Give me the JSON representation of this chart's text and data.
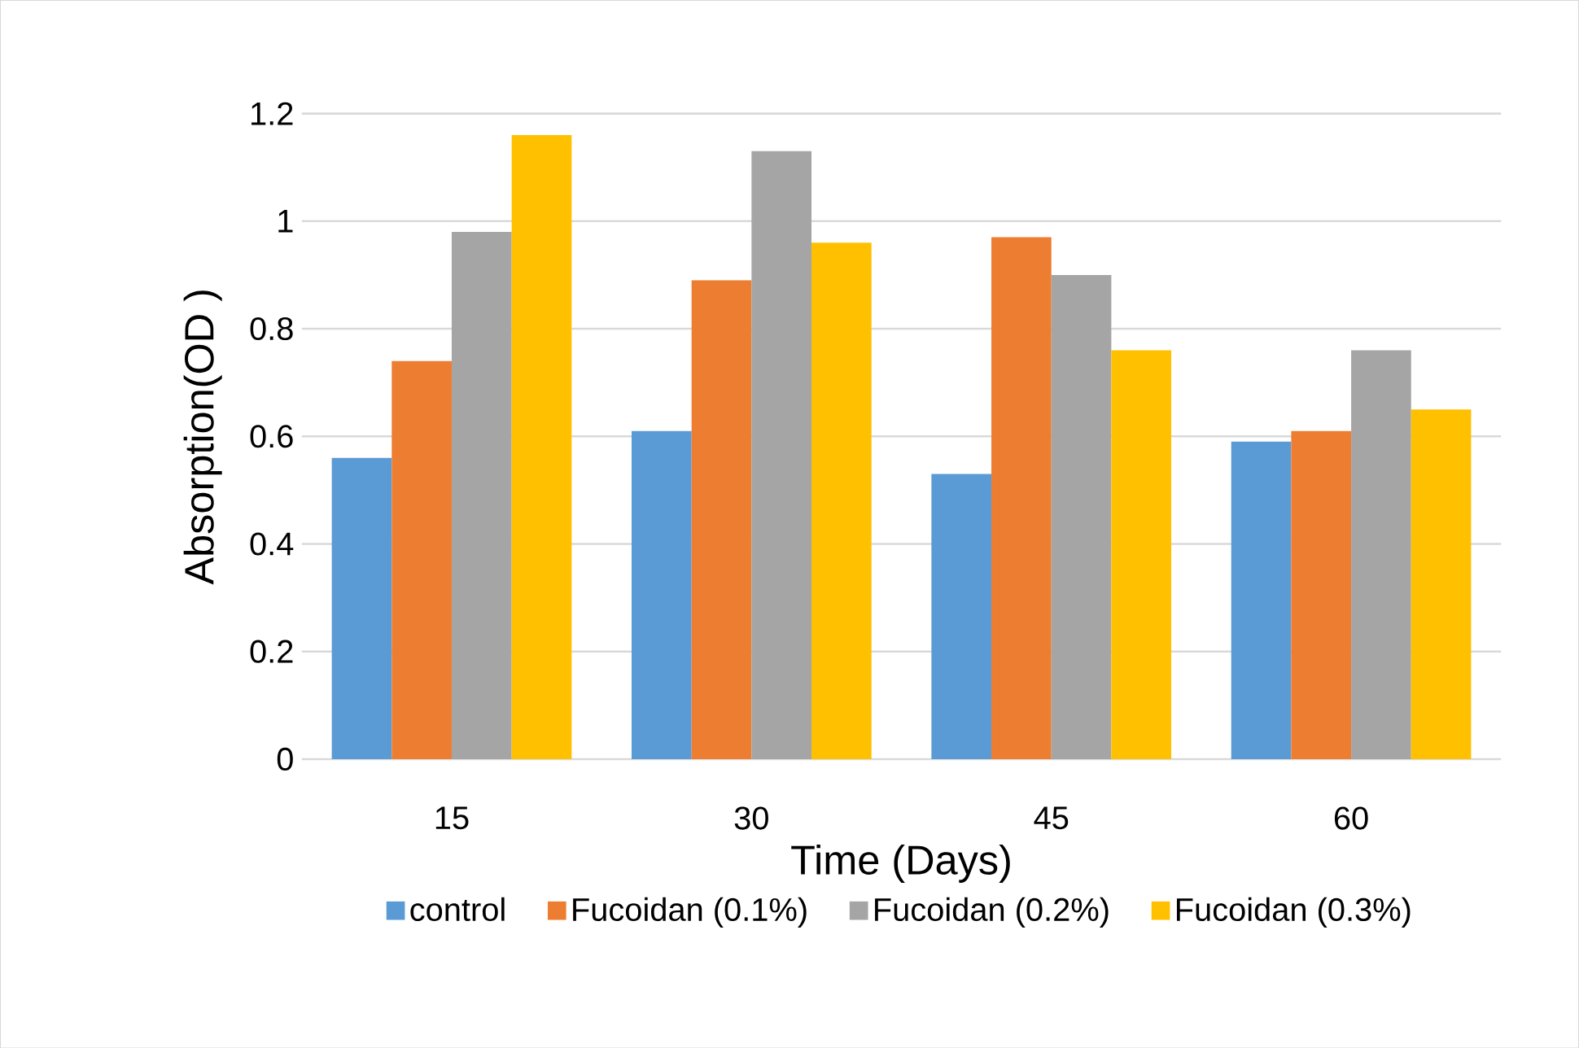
{
  "chart_data": {
    "type": "bar",
    "xlabel": "Time (Days)",
    "ylabel": "Absorption(OD )",
    "categories": [
      "15",
      "30",
      "45",
      "60"
    ],
    "series": [
      {
        "name": "control",
        "color": "#5b9bd5",
        "values": [
          0.56,
          0.61,
          0.53,
          0.59
        ]
      },
      {
        "name": "Fucoidan (0.1%)",
        "color": "#ed7d31",
        "values": [
          0.74,
          0.89,
          0.97,
          0.61
        ]
      },
      {
        "name": "Fucoidan (0.2%)",
        "color": "#a5a5a5",
        "values": [
          0.98,
          1.13,
          0.9,
          0.76
        ]
      },
      {
        "name": "Fucoidan (0.3%)",
        "color": "#ffc000",
        "values": [
          1.16,
          0.96,
          0.76,
          0.65
        ]
      }
    ],
    "ylim": [
      0,
      1.2
    ],
    "yticks": [
      0,
      0.2,
      0.4,
      0.6,
      0.8,
      1,
      1.2
    ],
    "grid": "y",
    "legend": "bottom"
  }
}
